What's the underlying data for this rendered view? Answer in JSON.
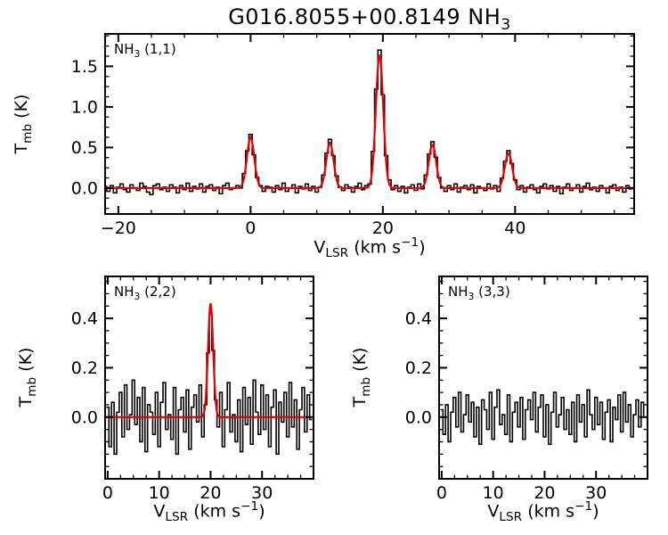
{
  "title": {
    "main": "G016.8055+00.8149 NH",
    "sub": "3"
  },
  "axes": {
    "ylabel": {
      "t": "T",
      "sub": "mb",
      "rest": " (K)"
    },
    "xlabel": {
      "v": "V",
      "sub": "LSR",
      "mid": " (km s",
      "sup": "−1",
      "end": ")"
    }
  },
  "colors": {
    "data": "#000000",
    "fit": "#e60000",
    "background": "#ffffff",
    "frame": "#000000"
  },
  "chart_data": [
    {
      "type": "line",
      "style": "step-histogram",
      "label": {
        "prefix": "NH",
        "sub": "3",
        "rest": " (1,1)"
      },
      "label_text": "NH3 (1,1)",
      "xlabel": "V_LSR (km s-1)",
      "ylabel": "T_mb (K)",
      "xlim": [
        -22,
        58
      ],
      "ylim": [
        -0.32,
        1.9
      ],
      "xticks": [
        -20,
        0,
        20,
        40
      ],
      "xtick_labels": [
        "−20",
        "0",
        "20",
        "40"
      ],
      "yticks": [
        0.0,
        0.5,
        1.0,
        1.5
      ],
      "ytick_labels": [
        "0.0",
        "0.5",
        "1.0",
        "1.5"
      ],
      "x_start": -22,
      "dx": 0.5,
      "values": [
        0.02,
        -0.04,
        0.03,
        -0.06,
        0.01,
        0.05,
        -0.02,
        -0.05,
        0.04,
        0.0,
        -0.03,
        0.06,
        0.02,
        -0.05,
        -0.08,
        0.03,
        0.05,
        -0.02,
        0.01,
        -0.04,
        0.04,
        0.01,
        -0.06,
        0.03,
        -0.02,
        0.06,
        -0.04,
        0.02,
        -0.01,
        0.05,
        -0.05,
        0.02,
        0.04,
        -0.03,
        0.01,
        -0.07,
        0.03,
        0.06,
        -0.02,
        0.0,
        0.03,
        0.0,
        0.18,
        0.46,
        0.66,
        0.41,
        0.13,
        0.03,
        -0.04,
        0.02,
        0.01,
        -0.05,
        0.03,
        -0.02,
        0.06,
        -0.04,
        0.0,
        0.04,
        -0.06,
        0.02,
        -0.01,
        0.05,
        -0.03,
        0.02,
        -0.05,
        0.01,
        0.16,
        0.43,
        0.6,
        0.4,
        0.15,
        0.01,
        -0.03,
        0.04,
        0.01,
        -0.05,
        0.02,
        0.06,
        -0.02,
        0.03,
        0.05,
        0.45,
        1.22,
        1.7,
        1.15,
        0.4,
        0.1,
        -0.02,
        0.03,
        -0.04,
        0.02,
        -0.06,
        0.01,
        0.04,
        -0.03,
        0.05,
        -0.01,
        0.16,
        0.42,
        0.57,
        0.38,
        0.13,
        0.0,
        -0.04,
        0.03,
        -0.02,
        0.05,
        -0.05,
        0.01,
        0.03,
        -0.02,
        0.04,
        -0.06,
        0.02,
        0.0,
        -0.03,
        0.05,
        -0.01,
        0.03,
        -0.04,
        0.12,
        0.33,
        0.46,
        0.3,
        0.1,
        -0.02,
        0.03,
        -0.05,
        0.01,
        0.04,
        -0.02,
        -0.06,
        0.02,
        0.05,
        -0.01,
        0.03,
        -0.04,
        0.02,
        -0.07,
        0.01,
        0.05,
        -0.03,
        0.0,
        0.04,
        -0.05,
        0.02,
        0.06,
        -0.02,
        0.01,
        -0.04,
        0.03,
        0.0,
        -0.06,
        0.02,
        0.04,
        -0.03,
        0.01,
        -0.05,
        0.03,
        -0.01
      ],
      "fit_components": [
        {
          "center": 0.0,
          "amp": 0.63,
          "sigma": 0.55
        },
        {
          "center": 12.0,
          "amp": 0.56,
          "sigma": 0.55
        },
        {
          "center": 19.5,
          "amp": 1.66,
          "sigma": 0.55
        },
        {
          "center": 27.5,
          "amp": 0.54,
          "sigma": 0.55
        },
        {
          "center": 39.0,
          "amp": 0.43,
          "sigma": 0.55
        }
      ]
    },
    {
      "type": "line",
      "style": "step-histogram",
      "label": {
        "prefix": "NH",
        "sub": "3",
        "rest": " (2,2)"
      },
      "label_text": "NH3 (2,2)",
      "xlabel": "V_LSR (km s-1)",
      "ylabel": "T_mb (K)",
      "xlim": [
        -0.5,
        40
      ],
      "ylim": [
        -0.25,
        0.57
      ],
      "xticks": [
        0,
        10,
        20,
        30
      ],
      "xtick_labels": [
        "0",
        "10",
        "20",
        "30"
      ],
      "yticks": [
        0.0,
        0.2,
        0.4
      ],
      "ytick_labels": [
        "0.0",
        "0.2",
        "0.4"
      ],
      "x_start": 0,
      "dx": 0.5,
      "values": [
        0.04,
        -0.12,
        0.06,
        -0.15,
        0.02,
        0.1,
        -0.08,
        0.13,
        -0.05,
        0.01,
        0.15,
        -0.03,
        0.08,
        -0.1,
        0.12,
        -0.14,
        0.05,
        0.02,
        -0.07,
        0.1,
        -0.12,
        0.06,
        0.14,
        -0.05,
        0.01,
        -0.09,
        0.12,
        -0.15,
        0.03,
        0.08,
        -0.06,
        0.11,
        -0.13,
        0.04,
        0.09,
        -0.02,
        0.13,
        -0.08,
        0.05,
        0.26,
        0.42,
        0.27,
        0.07,
        -0.04,
        0.1,
        -0.12,
        0.03,
        0.14,
        -0.06,
        0.01,
        -0.1,
        0.07,
        -0.14,
        0.12,
        -0.03,
        0.08,
        -0.11,
        0.15,
        0.02,
        -0.07,
        0.13,
        -0.05,
        0.09,
        -0.12,
        0.04,
        0.11,
        -0.15,
        0.06,
        -0.02,
        0.1,
        -0.08,
        0.14,
        -0.04,
        0.07,
        -0.13,
        0.03,
        0.12,
        -0.06,
        0.09,
        -0.01
      ],
      "fit_components": [
        {
          "center": 20.0,
          "amp": 0.46,
          "sigma": 0.5
        }
      ]
    },
    {
      "type": "line",
      "style": "step-histogram",
      "label": {
        "prefix": "NH",
        "sub": "3",
        "rest": " (3,3)"
      },
      "label_text": "NH3 (3,3)",
      "xlabel": "V_LSR (km s-1)",
      "ylabel": "T_mb (K)",
      "xlim": [
        -0.5,
        40
      ],
      "ylim": [
        -0.25,
        0.57
      ],
      "xticks": [
        0,
        10,
        20,
        30
      ],
      "xtick_labels": [
        "0",
        "10",
        "20",
        "30"
      ],
      "yticks": [
        0.0,
        0.2,
        0.4
      ],
      "ytick_labels": [
        "0.0",
        "0.2",
        "0.4"
      ],
      "x_start": 0,
      "dx": 0.5,
      "values": [
        0.03,
        -0.07,
        0.05,
        -0.1,
        0.02,
        0.08,
        -0.04,
        0.1,
        -0.06,
        0.01,
        0.09,
        -0.02,
        0.06,
        -0.08,
        0.04,
        -0.11,
        0.07,
        0.03,
        -0.05,
        0.1,
        -0.09,
        0.04,
        0.11,
        -0.03,
        0.01,
        -0.07,
        0.09,
        -0.1,
        0.02,
        0.06,
        -0.04,
        0.08,
        -0.09,
        0.03,
        0.07,
        -0.01,
        0.1,
        -0.06,
        0.04,
        0.09,
        -0.08,
        0.05,
        -0.11,
        0.02,
        0.1,
        -0.04,
        0.01,
        0.08,
        -0.05,
        0.03,
        -0.07,
        0.06,
        -0.1,
        0.09,
        -0.02,
        0.05,
        -0.08,
        0.11,
        0.01,
        -0.05,
        0.08,
        -0.03,
        0.06,
        -0.09,
        0.02,
        0.07,
        -0.1,
        0.04,
        -0.01,
        0.09,
        -0.06,
        0.1,
        -0.02,
        0.05,
        -0.08,
        0.01,
        0.07,
        -0.04,
        0.06,
        0.0
      ],
      "fit_components": null
    }
  ]
}
